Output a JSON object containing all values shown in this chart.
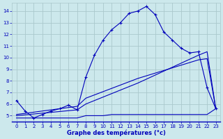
{
  "title": "Graphe des températures (°c)",
  "bg_color": "#cce8ec",
  "grid_color": "#aac8cc",
  "line_color": "#0000bb",
  "xlim": [
    -0.5,
    23.5
  ],
  "ylim": [
    4.5,
    14.7
  ],
  "xticks": [
    0,
    1,
    2,
    3,
    4,
    5,
    6,
    7,
    8,
    9,
    10,
    11,
    12,
    13,
    14,
    15,
    16,
    17,
    18,
    19,
    20,
    21,
    22,
    23
  ],
  "yticks": [
    5,
    6,
    7,
    8,
    9,
    10,
    11,
    12,
    13,
    14
  ],
  "main_line": [
    [
      0,
      6.3
    ],
    [
      1,
      5.4
    ],
    [
      2,
      4.8
    ],
    [
      3,
      5.1
    ],
    [
      4,
      5.4
    ],
    [
      5,
      5.6
    ],
    [
      6,
      5.9
    ],
    [
      7,
      5.5
    ],
    [
      8,
      8.3
    ],
    [
      9,
      10.2
    ],
    [
      10,
      11.5
    ],
    [
      11,
      12.4
    ],
    [
      12,
      13.0
    ],
    [
      13,
      13.8
    ],
    [
      14,
      14.0
    ],
    [
      15,
      14.4
    ],
    [
      16,
      13.7
    ],
    [
      17,
      12.2
    ],
    [
      18,
      11.5
    ],
    [
      19,
      10.8
    ],
    [
      20,
      10.4
    ],
    [
      21,
      10.5
    ],
    [
      22,
      7.4
    ],
    [
      23,
      5.6
    ]
  ],
  "flat_line": [
    [
      0,
      4.8
    ],
    [
      1,
      4.8
    ],
    [
      2,
      4.8
    ],
    [
      3,
      4.8
    ],
    [
      4,
      4.8
    ],
    [
      5,
      4.8
    ],
    [
      6,
      4.8
    ],
    [
      7,
      4.8
    ],
    [
      8,
      5.0
    ],
    [
      9,
      5.0
    ],
    [
      10,
      5.0
    ],
    [
      11,
      5.1
    ],
    [
      12,
      5.1
    ],
    [
      13,
      5.1
    ],
    [
      14,
      5.1
    ],
    [
      15,
      5.1
    ],
    [
      16,
      5.1
    ],
    [
      17,
      5.1
    ],
    [
      18,
      5.1
    ],
    [
      19,
      5.1
    ],
    [
      20,
      5.1
    ],
    [
      21,
      5.1
    ],
    [
      22,
      5.1
    ],
    [
      23,
      5.6
    ]
  ],
  "diag_line1": [
    [
      0,
      5.0
    ],
    [
      7,
      5.5
    ],
    [
      8,
      6.0
    ],
    [
      14,
      7.8
    ],
    [
      21,
      10.2
    ],
    [
      22,
      10.5
    ],
    [
      23,
      5.6
    ]
  ],
  "diag_line2": [
    [
      0,
      5.1
    ],
    [
      7,
      5.8
    ],
    [
      8,
      6.5
    ],
    [
      14,
      8.2
    ],
    [
      21,
      9.8
    ],
    [
      22,
      9.9
    ],
    [
      23,
      5.6
    ]
  ]
}
